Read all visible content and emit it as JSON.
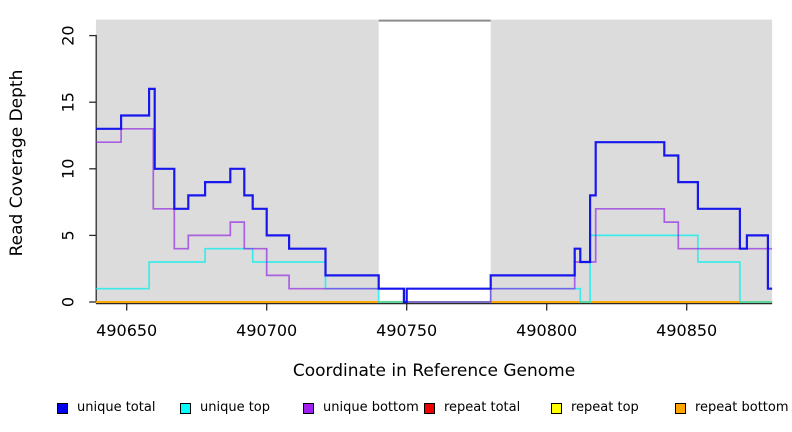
{
  "chart_data": {
    "type": "line",
    "style": "step",
    "title": "",
    "xlabel": "Coordinate in Reference Genome",
    "ylabel": "Read Coverage Depth",
    "xlim": [
      490639,
      490880.5
    ],
    "ylim": [
      0,
      21.2
    ],
    "xticks": [
      {
        "value": 490650,
        "label": "490650"
      },
      {
        "value": 490700,
        "label": "490700"
      },
      {
        "value": 490750,
        "label": "490750"
      },
      {
        "value": 490800,
        "label": "490800"
      },
      {
        "value": 490850,
        "label": "490850"
      }
    ],
    "yticks": [
      {
        "value": 0,
        "label": "0"
      },
      {
        "value": 5,
        "label": "5"
      },
      {
        "value": 10,
        "label": "10"
      },
      {
        "value": 15,
        "label": "15"
      },
      {
        "value": 20,
        "label": "20"
      }
    ],
    "grid": false,
    "background": {
      "plot_fill": "#dcdcdc",
      "shaded_regions": [
        {
          "from": 490639,
          "to": 490740
        },
        {
          "from": 490780,
          "to": 490880.5
        }
      ],
      "gap_band": {
        "from": 490740,
        "to": 490780,
        "fill": "#ffffff",
        "top_edge_color": "#8c8c8c"
      }
    },
    "axis_color": "#2b2b2b",
    "series": [
      {
        "name": "repeat total",
        "line_color": "#ee0000",
        "width": 1.5,
        "points": [
          [
            490639,
            0
          ],
          [
            490880.5,
            0
          ]
        ]
      },
      {
        "name": "repeat top",
        "line_color": "#ffff00",
        "width": 1.5,
        "points": [
          [
            490639,
            0
          ],
          [
            490880.5,
            0
          ]
        ]
      },
      {
        "name": "repeat bottom",
        "line_color": "#ffa500",
        "width": 1.8,
        "points": [
          [
            490639,
            0
          ],
          [
            490880.5,
            0
          ]
        ]
      },
      {
        "name": "unique top",
        "line_color": "rgba(0,240,240,0.72)",
        "width": 1.7,
        "points": [
          [
            490639,
            1
          ],
          [
            490658,
            3
          ],
          [
            490678,
            4
          ],
          [
            490695,
            3
          ],
          [
            490721,
            1
          ],
          [
            490740,
            0
          ],
          [
            490780,
            1
          ],
          [
            490812,
            0
          ],
          [
            490815.5,
            5
          ],
          [
            490854,
            3
          ],
          [
            490869,
            0
          ],
          [
            490880.5,
            0
          ]
        ]
      },
      {
        "name": "unique bottom",
        "line_color": "rgba(143,32,226,0.66)",
        "width": 1.7,
        "points": [
          [
            490639,
            12
          ],
          [
            490648,
            13
          ],
          [
            490659.5,
            7
          ],
          [
            490667,
            4
          ],
          [
            490672,
            5
          ],
          [
            490687,
            6
          ],
          [
            490692,
            4
          ],
          [
            490700,
            2
          ],
          [
            490708,
            1
          ],
          [
            490749,
            0
          ],
          [
            490780,
            1
          ],
          [
            490810,
            3
          ],
          [
            490817.5,
            7
          ],
          [
            490842,
            6
          ],
          [
            490847,
            4
          ],
          [
            490880.5,
            4
          ]
        ]
      },
      {
        "name": "unique total",
        "line_color": "rgba(13,13,236,0.95)",
        "width": 2.2,
        "points": [
          [
            490639,
            13
          ],
          [
            490648,
            14
          ],
          [
            490658,
            16
          ],
          [
            490660,
            10
          ],
          [
            490667,
            7
          ],
          [
            490672,
            8
          ],
          [
            490678,
            9
          ],
          [
            490687,
            10
          ],
          [
            490692,
            8
          ],
          [
            490695,
            7
          ],
          [
            490700,
            5
          ],
          [
            490708,
            4
          ],
          [
            490721,
            2
          ],
          [
            490740,
            1
          ],
          [
            490749,
            0
          ],
          [
            490750,
            1
          ],
          [
            490780,
            2
          ],
          [
            490810,
            4
          ],
          [
            490812,
            3
          ],
          [
            490815.5,
            8
          ],
          [
            490817.5,
            12
          ],
          [
            490842,
            11
          ],
          [
            490847,
            9
          ],
          [
            490854,
            7
          ],
          [
            490869,
            4
          ],
          [
            490871.5,
            5
          ],
          [
            490879,
            1
          ],
          [
            490880.5,
            1
          ]
        ]
      }
    ],
    "legend": {
      "position": "bottom",
      "items": [
        {
          "label": "unique total",
          "color": "#0000ee"
        },
        {
          "label": "unique top",
          "color": "#00ffff"
        },
        {
          "label": "unique bottom",
          "color": "#a020f0"
        },
        {
          "label": "repeat total",
          "color": "#ee0000"
        },
        {
          "label": "repeat top",
          "color": "#ffff00"
        },
        {
          "label": "repeat bottom",
          "color": "#ffa500"
        }
      ]
    }
  }
}
